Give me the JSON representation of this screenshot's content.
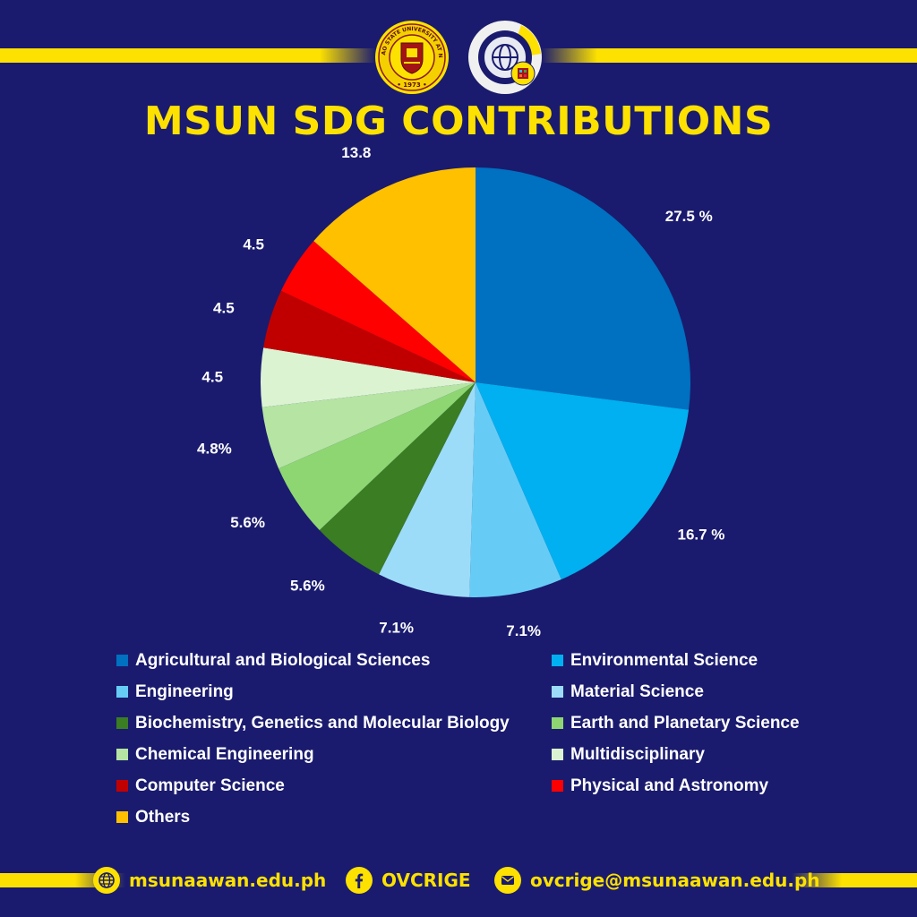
{
  "header": {
    "title": "MSUN SDG CONTRIBUTIONS",
    "logos": [
      {
        "name": "msu-naawan-seal-icon",
        "ring_text": "MINDANAO STATE UNIVERSITY AT NAAWAN • 1973 •"
      },
      {
        "name": "sdg-globe-gear-icon"
      }
    ]
  },
  "colors": {
    "background": "#1a1b6e",
    "accent": "#fde100",
    "text": "#ffffff"
  },
  "chart_data": {
    "type": "pie",
    "title": "MSUN SDG CONTRIBUTIONS",
    "slices": [
      {
        "name": "Agricultural and Biological Sciences",
        "value": 27.5,
        "label": "27.5 %",
        "color": "#0070c0"
      },
      {
        "name": "Environmental Science",
        "value": 16.7,
        "label": "16.7 %",
        "color": "#00b0f0"
      },
      {
        "name": "Engineering",
        "value": 7.1,
        "label": "7.1%",
        "color": "#66ccf5"
      },
      {
        "name": "Material Science",
        "value": 7.1,
        "label": "7.1%",
        "color": "#9ddcf8"
      },
      {
        "name": "Biochemistry, Genetics and Molecular Biology",
        "value": 5.6,
        "label": "5.6%",
        "color": "#3a7d22"
      },
      {
        "name": "Earth and Planetary Science",
        "value": 5.6,
        "label": "5.6%",
        "color": "#8ed672"
      },
      {
        "name": "Chemical Engineering",
        "value": 4.8,
        "label": "4.8%",
        "color": "#b5e4a3"
      },
      {
        "name": "Multidisciplinary",
        "value": 4.5,
        "label": "4.5",
        "color": "#dcf3d2"
      },
      {
        "name": "Computer Science",
        "value": 4.5,
        "label": "4.5",
        "color": "#c00000"
      },
      {
        "name": "Physical and Astronomy",
        "value": 4.5,
        "label": "4.5",
        "color": "#ff0000"
      },
      {
        "name": "Others",
        "value": 13.8,
        "label": "13.8",
        "color": "#ffc000"
      }
    ],
    "legend_placement": "bottom"
  },
  "legend": [
    "Agricultural and Biological Sciences",
    "Environmental Science",
    "Engineering",
    "Material Science",
    "Biochemistry, Genetics and Molecular Biology",
    "Earth and Planetary Science",
    "Chemical Engineering",
    "Multidisciplinary",
    "Computer Science",
    "Physical and Astronomy",
    "Others"
  ],
  "footer": {
    "website": {
      "icon": "globe-icon",
      "text": "msunaawan.edu.ph"
    },
    "facebook": {
      "icon": "facebook-icon",
      "text": "OVCRIGE"
    },
    "email": {
      "icon": "envelope-icon",
      "text": "ovcrige@msunaawan.edu.ph"
    }
  }
}
